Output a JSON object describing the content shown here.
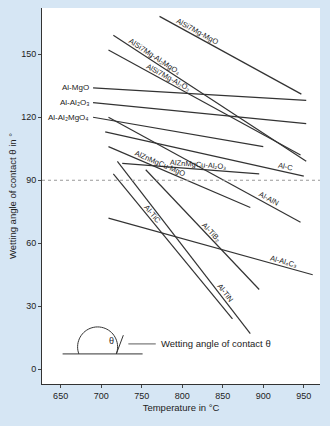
{
  "chart_data": {
    "type": "line",
    "x_label": "Temperature in °C",
    "y_label": "Wetting angle of contact θ in °",
    "xlim": [
      627,
      970
    ],
    "xticks": [
      650,
      700,
      750,
      800,
      850,
      900,
      950
    ],
    "ylim": [
      -7,
      172
    ],
    "yticks": [
      0,
      30,
      60,
      90,
      120,
      150
    ],
    "grid": false,
    "reference_line": {
      "y": 90,
      "line_style": "dotted"
    },
    "inset_label": "Wetting angle of contact θ",
    "inset_symbol": "θ",
    "series": [
      {
        "name": "AlSi7Mg-MgO",
        "color": "#333333",
        "x": [
          772,
          947
        ],
        "values": [
          168,
          131
        ]
      },
      {
        "name": "AlSi7Mg-Al₂MgO₄",
        "color": "#333333",
        "x": [
          715,
          953
        ],
        "values": [
          159,
          99
        ]
      },
      {
        "name": "AlSi7Mg-Al₂O₃",
        "color": "#333333",
        "x": [
          709,
          946
        ],
        "values": [
          152,
          102
        ]
      },
      {
        "name": "Al-MgO",
        "color": "#333333",
        "x": [
          690,
          953
        ],
        "values": [
          134,
          128
        ]
      },
      {
        "name": "Al-Al₂O₃",
        "color": "#333333",
        "x": [
          690,
          953
        ],
        "values": [
          127,
          117
        ]
      },
      {
        "name": "Al-Al₂MgO₄",
        "color": "#333333",
        "x": [
          690,
          900
        ],
        "values": [
          120,
          106
        ]
      },
      {
        "name": "Al-C",
        "color": "#333333",
        "x": [
          705,
          950
        ],
        "values": [
          113,
          92
        ]
      },
      {
        "name": "AlZnMgCu-MgO",
        "color": "#333333",
        "x": [
          709,
          884
        ],
        "values": [
          106,
          77
        ]
      },
      {
        "name": "AlZnMgCu-Al₂O₃",
        "color": "#333333",
        "x": [
          726,
          895
        ],
        "values": [
          98,
          93
        ]
      },
      {
        "name": "Al-AlN",
        "color": "#333333",
        "x": [
          709,
          946
        ],
        "values": [
          120,
          70
        ]
      },
      {
        "name": "Al-Al₄C₃",
        "color": "#333333",
        "x": [
          709,
          961
        ],
        "values": [
          72,
          45
        ]
      },
      {
        "name": "Al-TiC",
        "color": "#333333",
        "x": [
          715,
          862
        ],
        "values": [
          93,
          24
        ]
      },
      {
        "name": "Al-TiB₂",
        "color": "#333333",
        "x": [
          755,
          895
        ],
        "values": [
          95,
          38
        ]
      },
      {
        "name": "Al-TiN",
        "color": "#333333",
        "x": [
          720,
          884
        ],
        "values": [
          99,
          17
        ]
      }
    ]
  }
}
